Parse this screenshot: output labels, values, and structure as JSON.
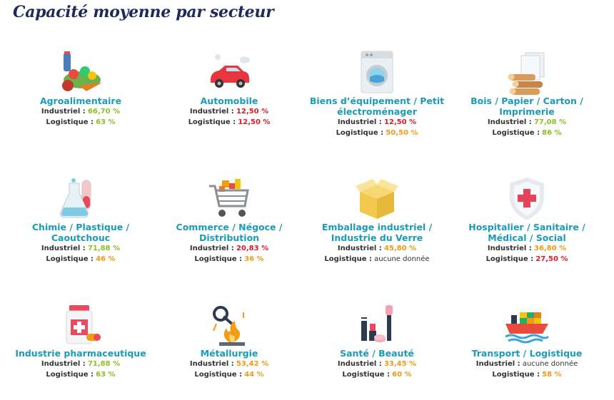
{
  "title": "Capacité moyenne par secteur",
  "labels": {
    "industriel": "Industriel :",
    "logistique": "Logistique :"
  },
  "sectors": [
    {
      "name": "Agroalimentaire",
      "icon": "vegetables-icon",
      "industriel": "66,70 %",
      "industriel_color": "green",
      "logistique": "63 %",
      "logistique_color": "green"
    },
    {
      "name": "Automobile",
      "icon": "car-icon",
      "industriel": "12,50 %",
      "industriel_color": "red",
      "logistique": "12,50 %",
      "logistique_color": "red"
    },
    {
      "name": "Biens d’équipement / Petit électroménager",
      "icon": "washing-machine-icon",
      "industriel": "12,50 %",
      "industriel_color": "red",
      "logistique": "50,50 %",
      "logistique_color": "orange"
    },
    {
      "name": "Bois / Papier / Carton / Imprimerie",
      "icon": "wood-paper-icon",
      "industriel": "77,08 %",
      "industriel_color": "green",
      "logistique": "86 %",
      "logistique_color": "green"
    },
    {
      "name": "Chimie / Plastique / Caoutchouc",
      "icon": "chemistry-flask-icon",
      "industriel": "71,88 %",
      "industriel_color": "green",
      "logistique": "46 %",
      "logistique_color": "orange"
    },
    {
      "name": "Commerce / Négoce / Distribution",
      "icon": "shopping-cart-icon",
      "industriel": "20,83 %",
      "industriel_color": "red",
      "logistique": "36 %",
      "logistique_color": "orange"
    },
    {
      "name": "Emballage industriel / Industrie du Verre",
      "icon": "box-icon",
      "industriel": "45,80 %",
      "industriel_color": "orange",
      "logistique": "aucune donnée",
      "logistique_color": "none"
    },
    {
      "name": "Hospitalier / Sanitaire / Médical / Social",
      "icon": "medical-shield-icon",
      "industriel": "36,80 %",
      "industriel_color": "orange",
      "logistique": "27,50 %",
      "logistique_color": "red"
    },
    {
      "name": "Industrie pharmaceutique",
      "icon": "pill-bottle-icon",
      "industriel": "71,88 %",
      "industriel_color": "green",
      "logistique": "63 %",
      "logistique_color": "green"
    },
    {
      "name": "Métallurgie",
      "icon": "metallurgy-flame-icon",
      "industriel": "53,42 %",
      "industriel_color": "orange",
      "logistique": "44 %",
      "logistique_color": "orange"
    },
    {
      "name": "Santé / Beauté",
      "icon": "cosmetics-icon",
      "industriel": "33,45 %",
      "industriel_color": "orange",
      "logistique": "60 %",
      "logistique_color": "orange"
    },
    {
      "name": "Transport / Logistique",
      "icon": "cargo-ship-icon",
      "industriel": "aucune donnée",
      "industriel_color": "none",
      "logistique": "58 %",
      "logistique_color": "orange"
    }
  ],
  "colors": {
    "title": "#1d2a5b",
    "sector": "#1a9bb8",
    "green": "#8cbf22",
    "red": "#d81c28",
    "orange": "#ef9a18"
  }
}
